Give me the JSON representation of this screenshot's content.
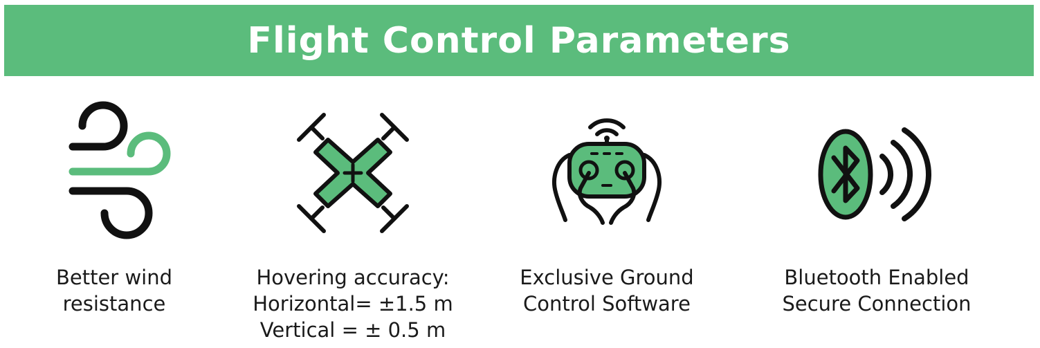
{
  "title": "Flight Control Parameters",
  "colors": {
    "accent": "#5bbc7c",
    "outline": "#111111",
    "text": "#1a1a1a"
  },
  "features": [
    {
      "icon": "wind-icon",
      "lines": [
        "Better wind",
        "resistance"
      ]
    },
    {
      "icon": "drone-icon",
      "lines": [
        "Hovering accuracy:",
        "Horizontal= ±1.5 m",
        "Vertical = ± 0.5 m"
      ]
    },
    {
      "icon": "remote-controller-icon",
      "lines": [
        "Exclusive Ground",
        "Control Software"
      ]
    },
    {
      "icon": "bluetooth-icon",
      "lines": [
        "Bluetooth Enabled",
        "Secure Connection"
      ]
    }
  ]
}
